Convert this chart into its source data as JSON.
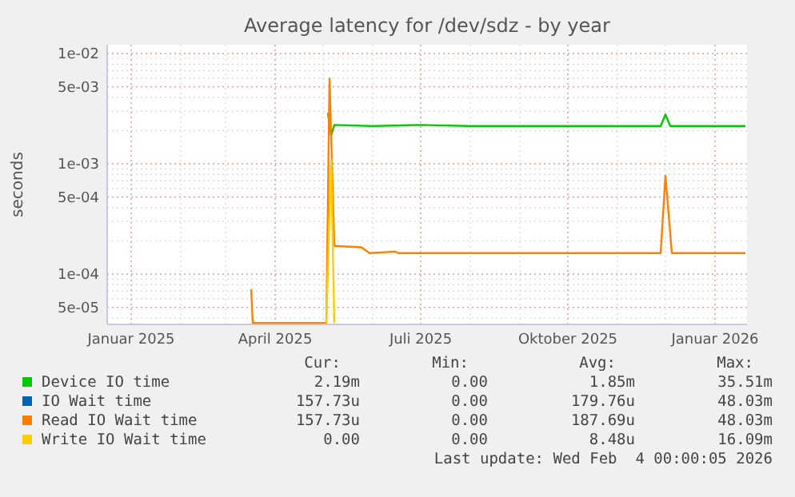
{
  "chart_data": {
    "type": "line",
    "title": "Average latency for /dev/sdz - by year",
    "ylabel": "seconds",
    "log": "y",
    "grid": true,
    "legend": "bottom",
    "line_style": "solid",
    "xlim": [
      "2024-12-17",
      "2026-01-21"
    ],
    "xticks": [
      {
        "value": "2025-01-01",
        "label": "Januar 2025"
      },
      {
        "value": "2025-04-01",
        "label": "April 2025"
      },
      {
        "value": "2025-07-01",
        "label": "Juli 2025"
      },
      {
        "value": "2025-10-01",
        "label": "Oktober 2025"
      },
      {
        "value": "2026-01-01",
        "label": "Januar 2026"
      }
    ],
    "ylim": [
      3.5e-05,
      0.012
    ],
    "yticks": [
      {
        "value": 0.01,
        "label": "1e-02"
      },
      {
        "value": 0.005,
        "label": "5e-03"
      },
      {
        "value": 0.001,
        "label": "1e-03"
      },
      {
        "value": 0.0005,
        "label": "5e-04"
      },
      {
        "value": 0.0001,
        "label": "1e-04"
      },
      {
        "value": 5e-05,
        "label": "5e-05"
      }
    ],
    "series": [
      {
        "name": "Device IO time",
        "color": "#00cc00",
        "x": [
          "2025-05-04",
          "2025-05-06",
          "2025-05-08",
          "2025-06-01",
          "2025-07-01",
          "2025-08-01",
          "2025-09-01",
          "2025-10-01",
          "2025-11-01",
          "2025-11-28",
          "2025-12-01",
          "2025-12-04",
          "2026-01-20"
        ],
        "values": [
          0.0029,
          0.0018,
          0.00225,
          0.0022,
          0.00225,
          0.0022,
          0.0022,
          0.0022,
          0.0022,
          0.0022,
          0.0028,
          0.0022,
          0.0022
        ]
      },
      {
        "name": "IO Wait time",
        "color": "#0066b3"
      },
      {
        "name": "Read IO Wait time",
        "color": "#ff8000",
        "x": [
          "2025-03-17",
          "2025-03-18",
          "2025-05-03",
          "2025-05-05",
          "2025-05-08",
          "2025-05-25",
          "2025-05-30",
          "2025-06-15",
          "2025-06-17",
          "2025-09-10",
          "2025-11-28",
          "2025-12-01",
          "2025-12-05",
          "2026-01-20"
        ],
        "values": [
          7.3e-05,
          3.6e-05,
          3.6e-05,
          0.0059,
          0.00018,
          0.000175,
          0.000155,
          0.00016,
          0.000155,
          0.000155,
          0.000155,
          0.00078,
          0.000155,
          0.000155
        ]
      },
      {
        "name": "Write IO Wait time",
        "color": "#ffcc00",
        "x": [
          "2025-05-03",
          "2025-05-06",
          "2025-05-08"
        ],
        "values": [
          3.6e-05,
          0.0011,
          3.6e-05
        ]
      }
    ],
    "annotations": [
      "Cur:",
      "Min:",
      "Avg:",
      "Max:",
      "2.19m",
      "0.00",
      "1.85m",
      "35.51m",
      "157.73u",
      "0.00",
      "179.76u",
      "48.03m",
      "157.73u",
      "0.00",
      "187.69u",
      "48.03m",
      "0.00",
      "0.00",
      "8.48u",
      "16.09m",
      "Last update: Wed Feb  4 00:00:05 2026"
    ]
  }
}
